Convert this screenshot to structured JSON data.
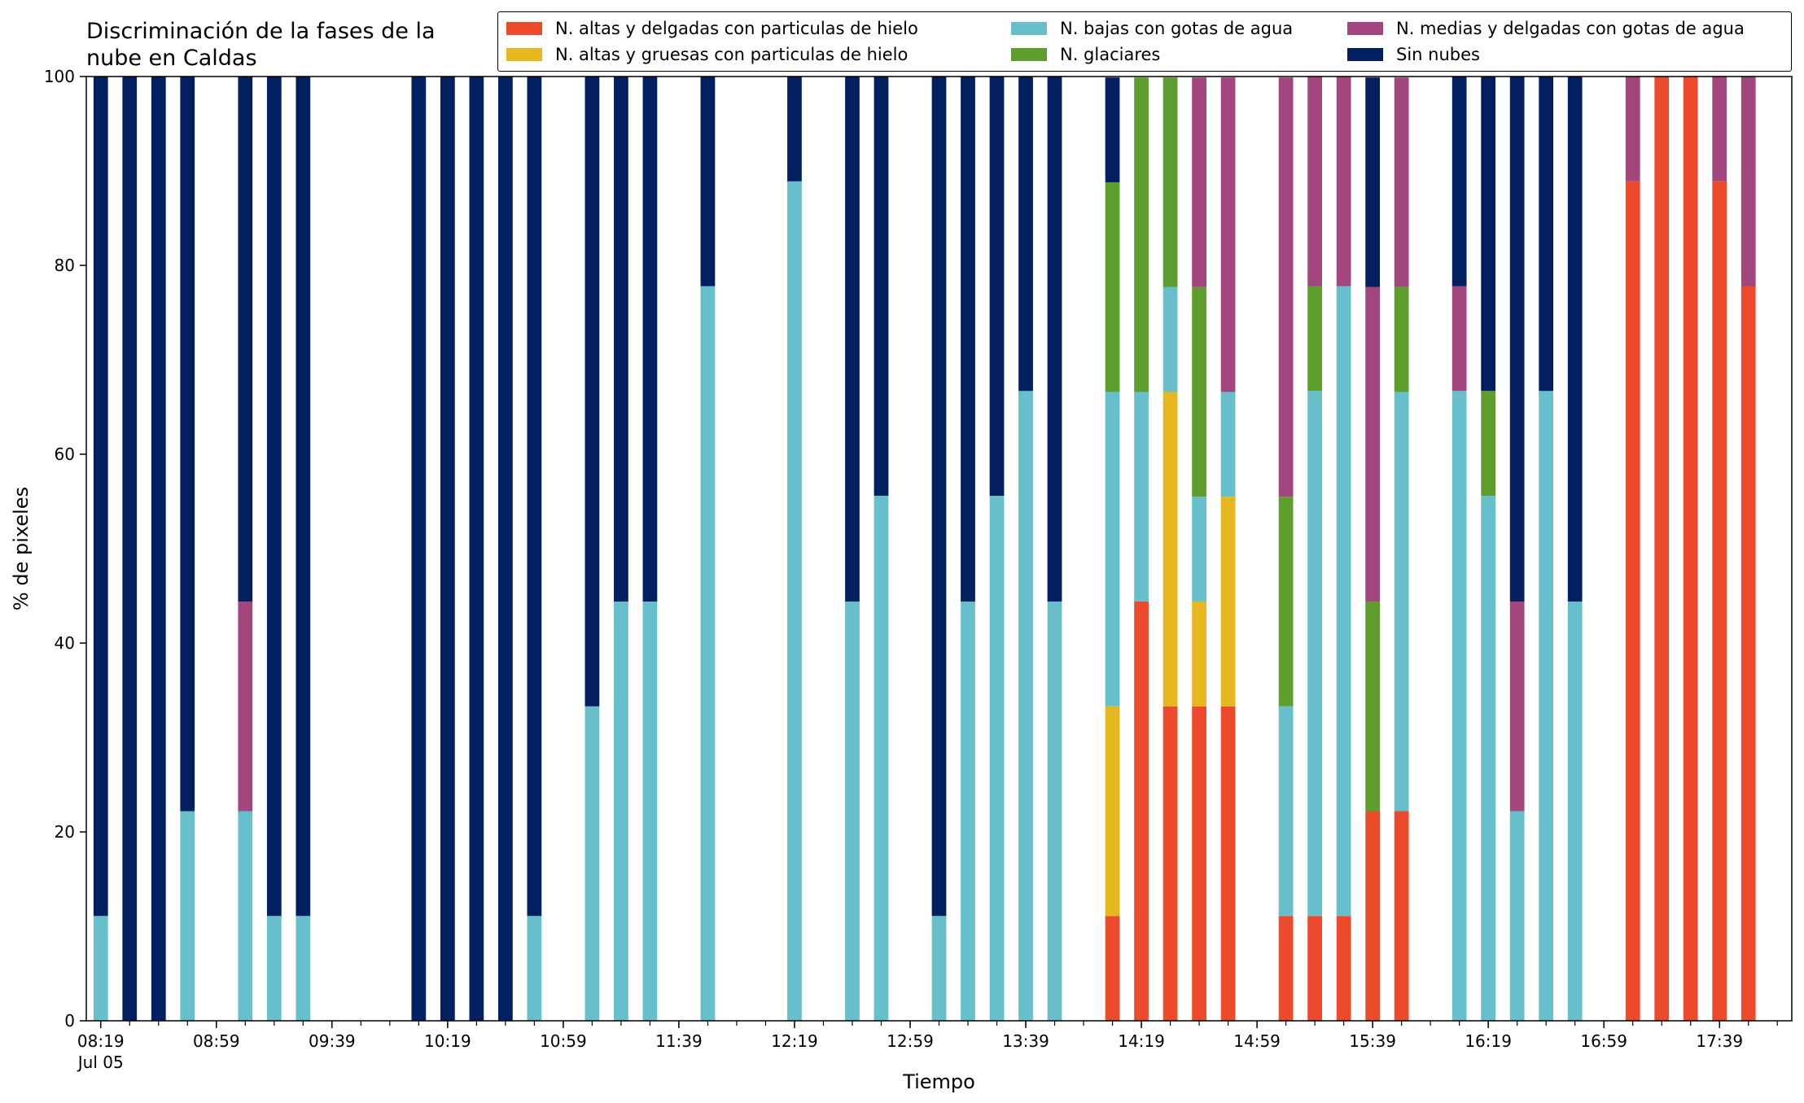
{
  "chart_data": {
    "type": "bar",
    "stacked": true,
    "title_lines": [
      "Discriminación de la fases de la",
      "nube en Caldas"
    ],
    "xlabel": "Tiempo",
    "ylabel": "% de pixeles",
    "ylim": [
      0,
      100
    ],
    "y_ticks": [
      0,
      20,
      40,
      60,
      80,
      100
    ],
    "x_start": "08:19",
    "x_end": "17:59",
    "x_step_minutes": 10,
    "x_tick_labels": [
      "08:19",
      "08:59",
      "09:39",
      "10:19",
      "10:59",
      "11:39",
      "12:19",
      "12:59",
      "13:39",
      "14:19",
      "14:59",
      "15:39",
      "16:19",
      "16:59",
      "17:39"
    ],
    "x_date_label": "Jul 05",
    "grid": false,
    "legend_position": "top-right",
    "series": [
      {
        "name": "N. altas y delgadas con particulas de hielo",
        "color": "#ec4a2b"
      },
      {
        "name": "N. altas y gruesas con particulas de hielo",
        "color": "#e6b71e"
      },
      {
        "name": "N. bajas con gotas de agua",
        "color": "#66bfcb"
      },
      {
        "name": "N. glaciares",
        "color": "#5e9e2c"
      },
      {
        "name": "N. medias y delgadas con gotas de agua",
        "color": "#a2467d"
      },
      {
        "name": "Sin nubes",
        "color": "#02205f"
      }
    ],
    "bars": [
      {
        "time": "08:19",
        "values": [
          0,
          0,
          11.1,
          0,
          0,
          88.9
        ]
      },
      {
        "time": "08:29",
        "values": [
          0,
          0,
          0,
          0,
          0,
          100
        ]
      },
      {
        "time": "08:39",
        "values": [
          0,
          0,
          0,
          0,
          0,
          100
        ]
      },
      {
        "time": "08:49",
        "values": [
          0,
          0,
          22.2,
          0,
          0,
          77.8
        ]
      },
      {
        "time": "09:09",
        "values": [
          0,
          0,
          22.2,
          0,
          22.2,
          55.6
        ]
      },
      {
        "time": "09:19",
        "values": [
          0,
          0,
          11.1,
          0,
          0,
          88.9
        ]
      },
      {
        "time": "09:29",
        "values": [
          0,
          0,
          11.1,
          0,
          0,
          88.9
        ]
      },
      {
        "time": "10:09",
        "values": [
          0,
          0,
          0,
          0,
          0,
          100
        ]
      },
      {
        "time": "10:19",
        "values": [
          0,
          0,
          0,
          0,
          0,
          100
        ]
      },
      {
        "time": "10:29",
        "values": [
          0,
          0,
          0,
          0,
          0,
          100
        ]
      },
      {
        "time": "10:39",
        "values": [
          0,
          0,
          0,
          0,
          0,
          100
        ]
      },
      {
        "time": "10:49",
        "values": [
          0,
          0,
          11.1,
          0,
          0,
          88.9
        ]
      },
      {
        "time": "11:09",
        "values": [
          0,
          0,
          33.3,
          0,
          0,
          66.7
        ]
      },
      {
        "time": "11:19",
        "values": [
          0,
          0,
          44.4,
          0,
          0,
          55.6
        ]
      },
      {
        "time": "11:29",
        "values": [
          0,
          0,
          44.4,
          0,
          0,
          55.6
        ]
      },
      {
        "time": "11:49",
        "values": [
          0,
          0,
          77.8,
          0,
          0,
          22.2
        ]
      },
      {
        "time": "12:19",
        "values": [
          0,
          0,
          88.9,
          0,
          0,
          11.1
        ]
      },
      {
        "time": "12:39",
        "values": [
          0,
          0,
          44.4,
          0,
          0,
          55.6
        ]
      },
      {
        "time": "12:49",
        "values": [
          0,
          0,
          55.6,
          0,
          0,
          44.4
        ]
      },
      {
        "time": "13:09",
        "values": [
          0,
          0,
          11.1,
          0,
          0,
          88.9
        ]
      },
      {
        "time": "13:19",
        "values": [
          0,
          0,
          44.4,
          0,
          0,
          55.6
        ]
      },
      {
        "time": "13:29",
        "values": [
          0,
          0,
          55.6,
          0,
          0,
          44.4
        ]
      },
      {
        "time": "13:39",
        "values": [
          0,
          0,
          66.7,
          0,
          0,
          33.3
        ]
      },
      {
        "time": "13:49",
        "values": [
          0,
          0,
          44.4,
          0,
          0,
          55.6
        ]
      },
      {
        "time": "14:09",
        "values": [
          11.1,
          22.2,
          33.3,
          22.2,
          0,
          11.1
        ]
      },
      {
        "time": "14:19",
        "values": [
          44.4,
          0,
          22.2,
          33.3,
          0,
          0
        ]
      },
      {
        "time": "14:29",
        "values": [
          33.3,
          33.3,
          11.1,
          22.2,
          0,
          0
        ]
      },
      {
        "time": "14:39",
        "values": [
          33.3,
          11.1,
          11.1,
          22.2,
          22.2,
          0
        ]
      },
      {
        "time": "14:49",
        "values": [
          33.3,
          22.2,
          11.1,
          0,
          33.3,
          0
        ]
      },
      {
        "time": "15:09",
        "values": [
          11.1,
          0,
          22.2,
          22.2,
          44.4,
          0
        ]
      },
      {
        "time": "15:19",
        "values": [
          11.1,
          0,
          55.6,
          11.1,
          22.2,
          0
        ]
      },
      {
        "time": "15:29",
        "values": [
          11.1,
          0,
          66.7,
          0,
          22.2,
          0
        ]
      },
      {
        "time": "15:39",
        "values": [
          22.2,
          0,
          0,
          22.2,
          33.3,
          22.2
        ]
      },
      {
        "time": "15:49",
        "values": [
          22.2,
          0,
          44.4,
          11.1,
          22.2,
          0
        ]
      },
      {
        "time": "16:09",
        "values": [
          0,
          0,
          66.7,
          0,
          11.1,
          22.2
        ]
      },
      {
        "time": "16:19",
        "values": [
          0,
          0,
          55.6,
          11.1,
          0,
          33.3
        ]
      },
      {
        "time": "16:29",
        "values": [
          0,
          0,
          22.2,
          0,
          22.2,
          55.6
        ]
      },
      {
        "time": "16:39",
        "values": [
          0,
          0,
          66.7,
          0,
          0,
          33.3
        ]
      },
      {
        "time": "16:49",
        "values": [
          0,
          0,
          44.4,
          0,
          0,
          55.6
        ]
      },
      {
        "time": "17:09",
        "values": [
          88.9,
          0,
          0,
          0,
          11.1,
          0
        ]
      },
      {
        "time": "17:19",
        "values": [
          100,
          0,
          0,
          0,
          0,
          0
        ]
      },
      {
        "time": "17:29",
        "values": [
          100,
          0,
          0,
          0,
          0,
          0
        ]
      },
      {
        "time": "17:39",
        "values": [
          88.9,
          0,
          0,
          0,
          11.1,
          0
        ]
      },
      {
        "time": "17:49",
        "values": [
          77.8,
          0,
          0,
          0,
          22.2,
          0
        ]
      }
    ]
  }
}
